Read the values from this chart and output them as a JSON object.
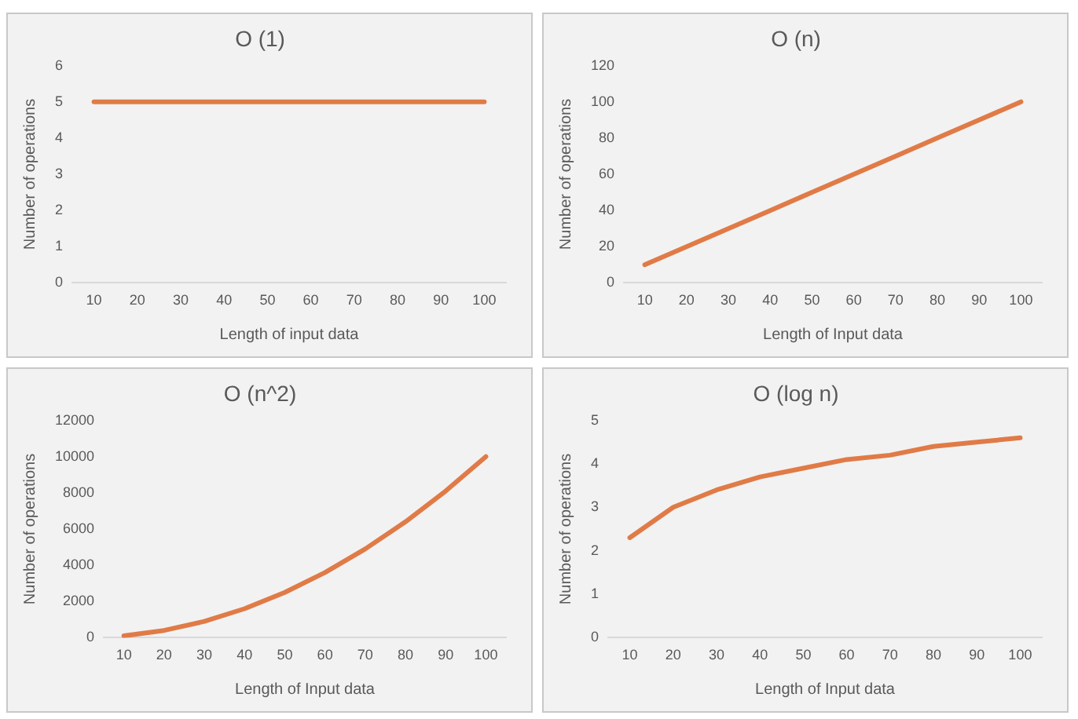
{
  "chart_data": [
    {
      "type": "line",
      "title": "O (1)",
      "xlabel": "Length of input data",
      "ylabel": "Number of operations",
      "categories": [
        "10",
        "20",
        "30",
        "40",
        "50",
        "60",
        "70",
        "80",
        "90",
        "100"
      ],
      "ylim": [
        0,
        6
      ],
      "yticks": [
        0,
        1,
        2,
        3,
        4,
        5,
        6
      ],
      "grid": false,
      "legend": false,
      "marker": "none",
      "series": [
        {
          "color": "#e07b47",
          "values": [
            5,
            5,
            5,
            5,
            5,
            5,
            5,
            5,
            5,
            5
          ]
        }
      ]
    },
    {
      "type": "line",
      "title": "O (n)",
      "xlabel": "Length of Input data",
      "ylabel": "Number of operations",
      "categories": [
        "10",
        "20",
        "30",
        "40",
        "50",
        "60",
        "70",
        "80",
        "90",
        "100"
      ],
      "ylim": [
        0,
        120
      ],
      "yticks": [
        0,
        20,
        40,
        60,
        80,
        100,
        120
      ],
      "grid": false,
      "legend": false,
      "marker": "none",
      "series": [
        {
          "color": "#e07b47",
          "values": [
            10,
            20,
            30,
            40,
            50,
            60,
            70,
            80,
            90,
            100
          ]
        }
      ]
    },
    {
      "type": "line",
      "title": "O (n^2)",
      "xlabel": "Length of Input data",
      "ylabel": "Number of operations",
      "categories": [
        "10",
        "20",
        "30",
        "40",
        "50",
        "60",
        "70",
        "80",
        "90",
        "100"
      ],
      "ylim": [
        0,
        12000
      ],
      "yticks": [
        0,
        2000,
        4000,
        6000,
        8000,
        10000,
        12000
      ],
      "grid": false,
      "legend": false,
      "marker": "none",
      "series": [
        {
          "color": "#e07b47",
          "values": [
            100,
            400,
            900,
            1600,
            2500,
            3600,
            4900,
            6400,
            8100,
            10000
          ]
        }
      ]
    },
    {
      "type": "line",
      "title": "O (log n)",
      "xlabel": "Length of Input data",
      "ylabel": "Number of operations",
      "categories": [
        "10",
        "20",
        "30",
        "40",
        "50",
        "60",
        "70",
        "80",
        "90",
        "100"
      ],
      "ylim": [
        0,
        5
      ],
      "yticks": [
        0,
        1,
        2,
        3,
        4,
        5
      ],
      "grid": false,
      "legend": false,
      "marker": "none",
      "series": [
        {
          "color": "#e07b47",
          "values": [
            2.3,
            3.0,
            3.4,
            3.7,
            3.9,
            4.1,
            4.2,
            4.4,
            4.5,
            4.6
          ]
        }
      ]
    }
  ]
}
